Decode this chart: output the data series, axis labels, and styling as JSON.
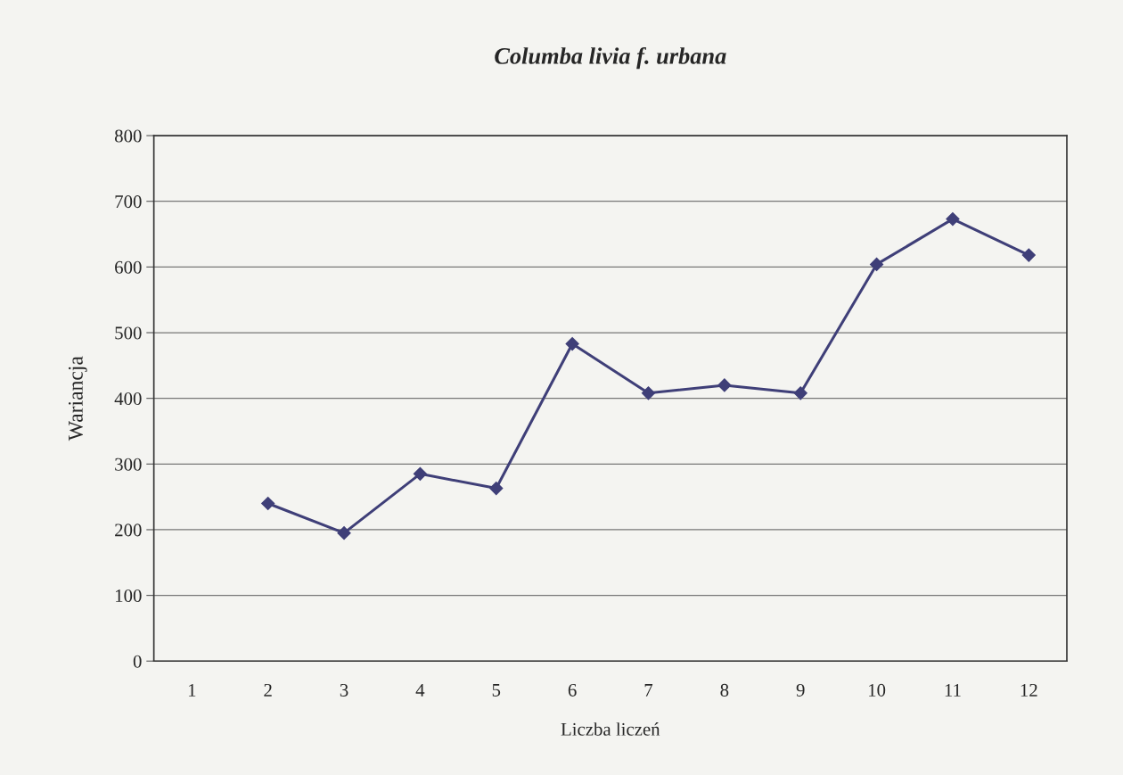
{
  "chart_data": {
    "type": "line",
    "title": "Columba livia f. urbana",
    "xlabel": "Liczba liczeń",
    "ylabel": "Wariancja",
    "categories": [
      "1",
      "2",
      "3",
      "4",
      "5",
      "6",
      "7",
      "8",
      "9",
      "10",
      "11",
      "12"
    ],
    "series": [
      {
        "color": "#3f3f78",
        "values": [
          null,
          240,
          195,
          285,
          263,
          483,
          408,
          420,
          408,
          604,
          673,
          618
        ]
      }
    ],
    "ylim": [
      0,
      800
    ],
    "yticks": [
      0,
      100,
      200,
      300,
      400,
      500,
      600,
      700,
      800
    ],
    "grid": "y",
    "marker": "diamond",
    "line_style": "solid",
    "legend": false
  }
}
